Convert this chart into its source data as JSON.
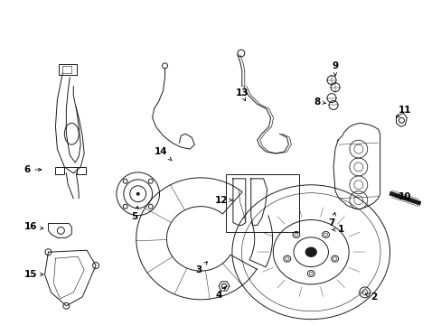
{
  "background_color": "#ffffff",
  "figsize": [
    4.89,
    3.6
  ],
  "dpi": 100,
  "line_color": "#1a1a1a",
  "label_fontsize": 7.5,
  "labels": {
    "1": [
      378,
      255,
      362,
      255
    ],
    "2": [
      405,
      330,
      390,
      325
    ],
    "3": [
      218,
      298,
      230,
      288
    ],
    "4": [
      245,
      325,
      252,
      315
    ],
    "5": [
      148,
      232,
      155,
      222
    ],
    "6": [
      32,
      188,
      48,
      188
    ],
    "7": [
      362,
      245,
      370,
      233
    ],
    "8": [
      358,
      106,
      372,
      110
    ],
    "9": [
      370,
      72,
      378,
      80
    ],
    "10": [
      448,
      218,
      435,
      210
    ],
    "11": [
      448,
      125,
      438,
      132
    ],
    "12": [
      248,
      220,
      262,
      220
    ],
    "13": [
      270,
      105,
      278,
      115
    ],
    "14": [
      180,
      168,
      192,
      178
    ],
    "15": [
      38,
      305,
      55,
      305
    ],
    "16": [
      38,
      255,
      55,
      255
    ]
  }
}
